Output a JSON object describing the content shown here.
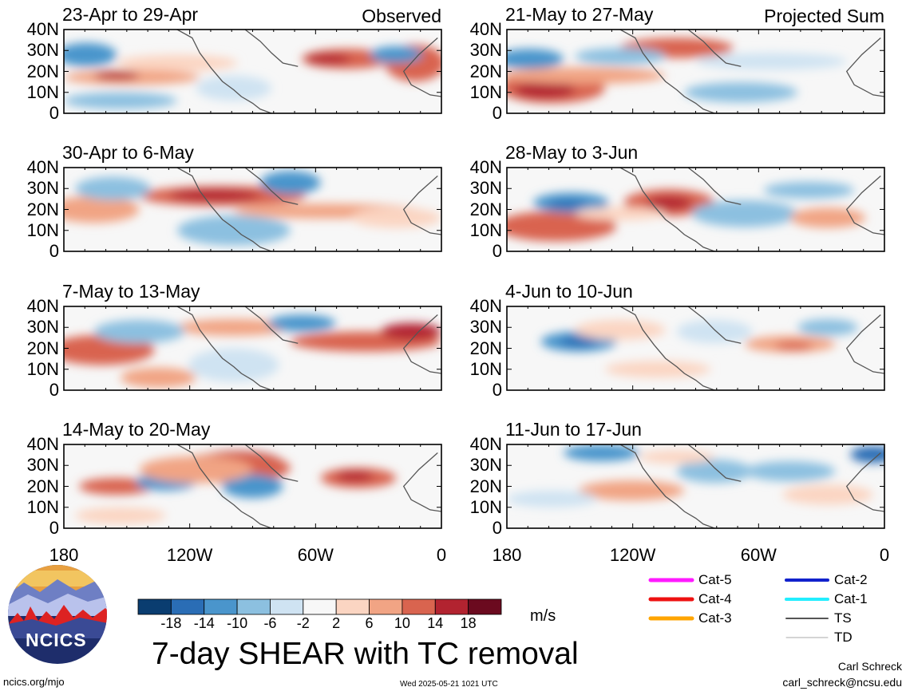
{
  "panels": [
    {
      "title": "23-Apr to 29-Apr",
      "tag": "Observed",
      "column": "left",
      "row": 0
    },
    {
      "title": "30-Apr to 6-May",
      "tag": "",
      "column": "left",
      "row": 1
    },
    {
      "title": "7-May to 13-May",
      "tag": "",
      "column": "left",
      "row": 2
    },
    {
      "title": "14-May to 20-May",
      "tag": "",
      "column": "left",
      "row": 3
    },
    {
      "title": "21-May to 27-May",
      "tag": "Projected Sum",
      "column": "right",
      "row": 0
    },
    {
      "title": "28-May to 3-Jun",
      "tag": "",
      "column": "right",
      "row": 1
    },
    {
      "title": "4-Jun to 10-Jun",
      "tag": "",
      "column": "right",
      "row": 2
    },
    {
      "title": "11-Jun to 17-Jun",
      "tag": "",
      "column": "right",
      "row": 3
    }
  ],
  "y_axis_labels": [
    "40N",
    "30N",
    "20N",
    "10N",
    "0"
  ],
  "x_axis_labels": [
    "180",
    "120W",
    "60W",
    "0"
  ],
  "colorbar": {
    "colors": [
      "#0a3d70",
      "#2a6db5",
      "#4a95cc",
      "#8cc0e0",
      "#cfe3f2",
      "#f7f7f7",
      "#fbd5c2",
      "#f1a484",
      "#d9644f",
      "#b22330",
      "#6b0a1f"
    ],
    "labels": [
      "-18",
      "-14",
      "-10",
      "-6",
      "-2",
      "2",
      "6",
      "10",
      "14",
      "18"
    ],
    "unit": "m/s"
  },
  "main_title": "7-day SHEAR with TC removal",
  "logo_text": "NCICS",
  "website": "ncics.org/mjo",
  "timestamp": "Wed 2025-05-21 1021 UTC",
  "author": "Carl Schreck",
  "email": "carl_schreck@ncsu.edu",
  "track_legend": [
    {
      "label": "Cat-5",
      "color": "#ff1aff"
    },
    {
      "label": "Cat-4",
      "color": "#ee1111"
    },
    {
      "label": "Cat-3",
      "color": "#ffa500"
    },
    {
      "label": "Cat-2",
      "color": "#1122cc"
    },
    {
      "label": "Cat-1",
      "color": "#22eeff"
    },
    {
      "label": "TS",
      "color": "#555555"
    },
    {
      "label": "TD",
      "color": "#aaaaaa"
    }
  ]
}
